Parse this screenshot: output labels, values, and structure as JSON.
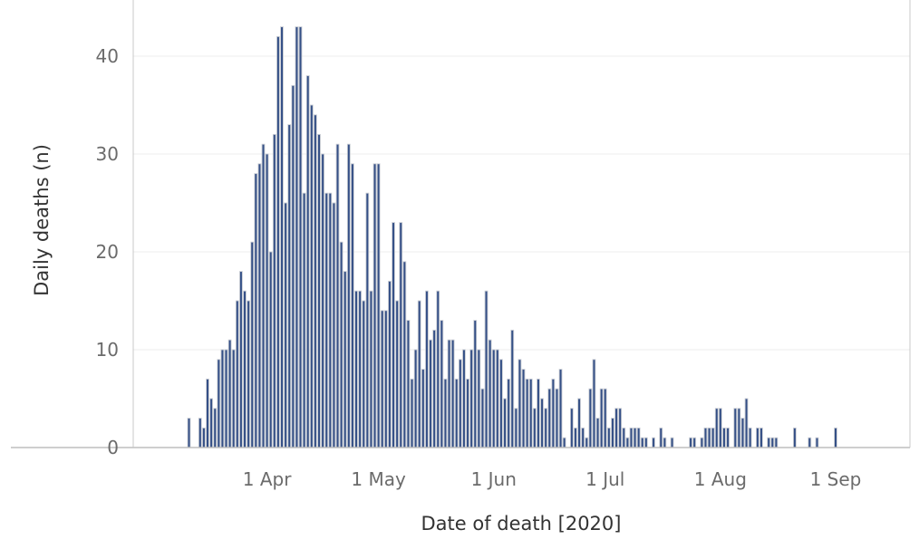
{
  "chart_data": {
    "type": "bar",
    "xlabel": "Date of death [2020]",
    "ylabel": "Daily deaths (n)",
    "ylim": [
      0,
      45
    ],
    "yticks": [
      0,
      10,
      20,
      30,
      40
    ],
    "xticks": [
      {
        "date": "2020-04-01",
        "label": "1 Apr"
      },
      {
        "date": "2020-05-01",
        "label": "1 May"
      },
      {
        "date": "2020-06-01",
        "label": "1 Jun"
      },
      {
        "date": "2020-07-01",
        "label": "1 Jul"
      },
      {
        "date": "2020-08-01",
        "label": "1 Aug"
      },
      {
        "date": "2020-09-01",
        "label": "1 Sep"
      }
    ],
    "x_range": [
      "2020-02-25",
      "2020-09-21"
    ],
    "grid": "horizontal",
    "bar_color": "#344f86",
    "bar_edge_color": "#c9cdd4",
    "series": [
      {
        "points": [
          [
            "2020-03-11",
            3
          ],
          [
            "2020-03-14",
            3
          ],
          [
            "2020-03-15",
            2
          ],
          [
            "2020-03-16",
            7
          ],
          [
            "2020-03-17",
            5
          ],
          [
            "2020-03-18",
            4
          ],
          [
            "2020-03-19",
            9
          ],
          [
            "2020-03-20",
            10
          ],
          [
            "2020-03-21",
            10
          ],
          [
            "2020-03-22",
            11
          ],
          [
            "2020-03-23",
            10
          ],
          [
            "2020-03-24",
            15
          ],
          [
            "2020-03-25",
            18
          ],
          [
            "2020-03-26",
            16
          ],
          [
            "2020-03-27",
            15
          ],
          [
            "2020-03-28",
            21
          ],
          [
            "2020-03-29",
            28
          ],
          [
            "2020-03-30",
            29
          ],
          [
            "2020-03-31",
            31
          ],
          [
            "2020-04-01",
            30
          ],
          [
            "2020-04-02",
            20
          ],
          [
            "2020-04-03",
            32
          ],
          [
            "2020-04-04",
            42
          ],
          [
            "2020-04-05",
            43
          ],
          [
            "2020-04-06",
            25
          ],
          [
            "2020-04-07",
            33
          ],
          [
            "2020-04-08",
            37
          ],
          [
            "2020-04-09",
            43
          ],
          [
            "2020-04-10",
            43
          ],
          [
            "2020-04-11",
            26
          ],
          [
            "2020-04-12",
            38
          ],
          [
            "2020-04-13",
            35
          ],
          [
            "2020-04-14",
            34
          ],
          [
            "2020-04-15",
            32
          ],
          [
            "2020-04-16",
            30
          ],
          [
            "2020-04-17",
            26
          ],
          [
            "2020-04-18",
            26
          ],
          [
            "2020-04-19",
            25
          ],
          [
            "2020-04-20",
            31
          ],
          [
            "2020-04-21",
            21
          ],
          [
            "2020-04-22",
            18
          ],
          [
            "2020-04-23",
            31
          ],
          [
            "2020-04-24",
            29
          ],
          [
            "2020-04-25",
            16
          ],
          [
            "2020-04-26",
            16
          ],
          [
            "2020-04-27",
            15
          ],
          [
            "2020-04-28",
            26
          ],
          [
            "2020-04-29",
            16
          ],
          [
            "2020-04-30",
            29
          ],
          [
            "2020-05-01",
            29
          ],
          [
            "2020-05-02",
            14
          ],
          [
            "2020-05-03",
            14
          ],
          [
            "2020-05-04",
            17
          ],
          [
            "2020-05-05",
            23
          ],
          [
            "2020-05-06",
            15
          ],
          [
            "2020-05-07",
            23
          ],
          [
            "2020-05-08",
            19
          ],
          [
            "2020-05-09",
            13
          ],
          [
            "2020-05-10",
            7
          ],
          [
            "2020-05-11",
            10
          ],
          [
            "2020-05-12",
            15
          ],
          [
            "2020-05-13",
            8
          ],
          [
            "2020-05-14",
            16
          ],
          [
            "2020-05-15",
            11
          ],
          [
            "2020-05-16",
            12
          ],
          [
            "2020-05-17",
            16
          ],
          [
            "2020-05-18",
            13
          ],
          [
            "2020-05-19",
            7
          ],
          [
            "2020-05-20",
            11
          ],
          [
            "2020-05-21",
            11
          ],
          [
            "2020-05-22",
            7
          ],
          [
            "2020-05-23",
            9
          ],
          [
            "2020-05-24",
            10
          ],
          [
            "2020-05-25",
            7
          ],
          [
            "2020-05-26",
            10
          ],
          [
            "2020-05-27",
            13
          ],
          [
            "2020-05-28",
            10
          ],
          [
            "2020-05-29",
            6
          ],
          [
            "2020-05-30",
            16
          ],
          [
            "2020-05-31",
            11
          ],
          [
            "2020-06-01",
            10
          ],
          [
            "2020-06-02",
            10
          ],
          [
            "2020-06-03",
            9
          ],
          [
            "2020-06-04",
            5
          ],
          [
            "2020-06-05",
            7
          ],
          [
            "2020-06-06",
            12
          ],
          [
            "2020-06-07",
            4
          ],
          [
            "2020-06-08",
            9
          ],
          [
            "2020-06-09",
            8
          ],
          [
            "2020-06-10",
            7
          ],
          [
            "2020-06-11",
            7
          ],
          [
            "2020-06-12",
            4
          ],
          [
            "2020-06-13",
            7
          ],
          [
            "2020-06-14",
            5
          ],
          [
            "2020-06-15",
            4
          ],
          [
            "2020-06-16",
            6
          ],
          [
            "2020-06-17",
            7
          ],
          [
            "2020-06-18",
            6
          ],
          [
            "2020-06-19",
            8
          ],
          [
            "2020-06-20",
            1
          ],
          [
            "2020-06-22",
            4
          ],
          [
            "2020-06-23",
            2
          ],
          [
            "2020-06-24",
            5
          ],
          [
            "2020-06-25",
            2
          ],
          [
            "2020-06-26",
            1
          ],
          [
            "2020-06-27",
            6
          ],
          [
            "2020-06-28",
            9
          ],
          [
            "2020-06-29",
            3
          ],
          [
            "2020-06-30",
            6
          ],
          [
            "2020-07-01",
            6
          ],
          [
            "2020-07-02",
            2
          ],
          [
            "2020-07-03",
            3
          ],
          [
            "2020-07-04",
            4
          ],
          [
            "2020-07-05",
            4
          ],
          [
            "2020-07-06",
            2
          ],
          [
            "2020-07-07",
            1
          ],
          [
            "2020-07-08",
            2
          ],
          [
            "2020-07-09",
            2
          ],
          [
            "2020-07-10",
            2
          ],
          [
            "2020-07-11",
            1
          ],
          [
            "2020-07-12",
            1
          ],
          [
            "2020-07-14",
            1
          ],
          [
            "2020-07-16",
            2
          ],
          [
            "2020-07-17",
            1
          ],
          [
            "2020-07-19",
            1
          ],
          [
            "2020-07-24",
            1
          ],
          [
            "2020-07-25",
            1
          ],
          [
            "2020-07-27",
            1
          ],
          [
            "2020-07-28",
            2
          ],
          [
            "2020-07-29",
            2
          ],
          [
            "2020-07-30",
            2
          ],
          [
            "2020-07-31",
            4
          ],
          [
            "2020-08-01",
            4
          ],
          [
            "2020-08-02",
            2
          ],
          [
            "2020-08-03",
            2
          ],
          [
            "2020-08-05",
            4
          ],
          [
            "2020-08-06",
            4
          ],
          [
            "2020-08-07",
            3
          ],
          [
            "2020-08-08",
            5
          ],
          [
            "2020-08-09",
            2
          ],
          [
            "2020-08-11",
            2
          ],
          [
            "2020-08-12",
            2
          ],
          [
            "2020-08-14",
            1
          ],
          [
            "2020-08-15",
            1
          ],
          [
            "2020-08-16",
            1
          ],
          [
            "2020-08-21",
            2
          ],
          [
            "2020-08-25",
            1
          ],
          [
            "2020-08-27",
            1
          ],
          [
            "2020-09-01",
            2
          ]
        ]
      }
    ]
  }
}
